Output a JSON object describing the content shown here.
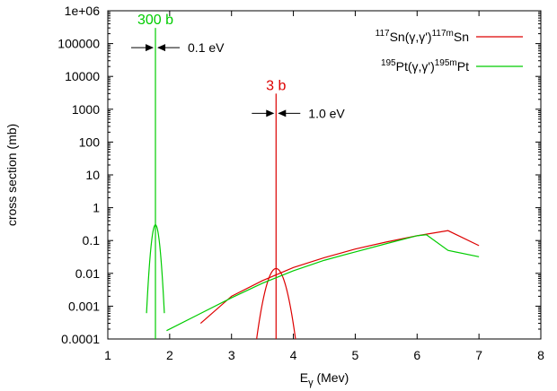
{
  "chart_data": {
    "type": "line",
    "xlabel": {
      "base": "E",
      "sub": "γ",
      "rest": " (Mev)"
    },
    "ylabel": "cross section (mb)",
    "xlim": [
      1,
      8
    ],
    "ylim": [
      0.0001,
      1000000
    ],
    "yscale": "log",
    "xticks": [
      "1",
      "2",
      "3",
      "4",
      "5",
      "6",
      "7",
      "8"
    ],
    "yticks": [
      "0.0001",
      "0.001",
      "0.01",
      "0.1",
      "1",
      "10",
      "100",
      "1000",
      "10000",
      "100000",
      "1e+06"
    ],
    "grid": false,
    "legend_position": "top-right",
    "series": [
      {
        "name": {
          "pre": "117",
          "el1": "Sn(γ,γ')",
          "sup": "117m",
          "el2": "Sn"
        },
        "color": "#dd0000",
        "points": [
          [
            2.5,
            0.0003
          ],
          [
            3.0,
            0.002
          ],
          [
            3.5,
            0.006
          ],
          [
            4.0,
            0.015
          ],
          [
            4.5,
            0.03
          ],
          [
            5.0,
            0.055
          ],
          [
            5.5,
            0.09
          ],
          [
            6.0,
            0.14
          ],
          [
            6.5,
            0.2
          ],
          [
            7.0,
            0.07
          ]
        ],
        "peaks": [
          {
            "x": 3.72,
            "width": 0.22,
            "peak": 0.014
          }
        ],
        "resonance": {
          "x": 3.72,
          "y": 3000,
          "label": "3 b",
          "width_label": "1.0 eV"
        }
      },
      {
        "name": {
          "pre": "195",
          "el1": "Pt(γ,γ')",
          "sup": "195m",
          "el2": "Pt"
        },
        "color": "#00cc00",
        "points": [
          [
            1.95,
            0.00018
          ],
          [
            2.5,
            0.0006
          ],
          [
            3.0,
            0.0018
          ],
          [
            3.5,
            0.005
          ],
          [
            4.0,
            0.012
          ],
          [
            4.5,
            0.025
          ],
          [
            5.0,
            0.045
          ],
          [
            5.5,
            0.08
          ],
          [
            6.0,
            0.14
          ],
          [
            6.15,
            0.15
          ],
          [
            6.5,
            0.05
          ],
          [
            7.0,
            0.032
          ]
        ],
        "peaks": [
          {
            "x": 1.77,
            "width": 0.09,
            "peak": 0.3
          }
        ],
        "resonance": {
          "x": 1.77,
          "y": 300000,
          "label": "300 b",
          "width_label": "0.1 eV"
        }
      }
    ]
  }
}
